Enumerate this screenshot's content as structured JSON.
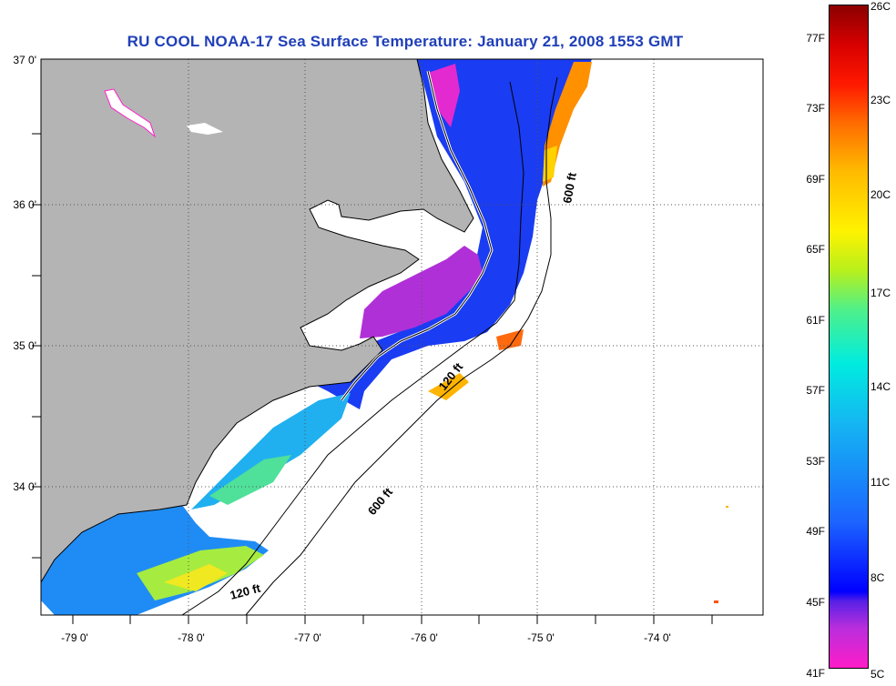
{
  "title": "RU COOL  NOAA-17  Sea Surface Temperature:  January 21, 2008 1553 GMT",
  "lat_labels": [
    "37 0'",
    "36 0'",
    "35 0'",
    "34 0'"
  ],
  "lon_labels": [
    "-79 0'",
    "-78 0'",
    "-77 0'",
    "-76 0'",
    "-75 0'",
    "-74 0'"
  ],
  "depth_labels": [
    "600 ft",
    "120 ft",
    "600 ft",
    "120 ft"
  ],
  "colorbar": {
    "fahrenheit": [
      "77F",
      "73F",
      "69F",
      "65F",
      "61F",
      "57F",
      "53F",
      "49F",
      "45F",
      "41F"
    ],
    "celsius": [
      "26C",
      "23C",
      "20C",
      "17C",
      "14C",
      "11C",
      "8C",
      "5C"
    ]
  },
  "colors": {
    "land": "#b4b4b4",
    "water_cold": "#0a2cf5",
    "water_warm": "#ff9a00",
    "title": "#1f3fb8"
  }
}
